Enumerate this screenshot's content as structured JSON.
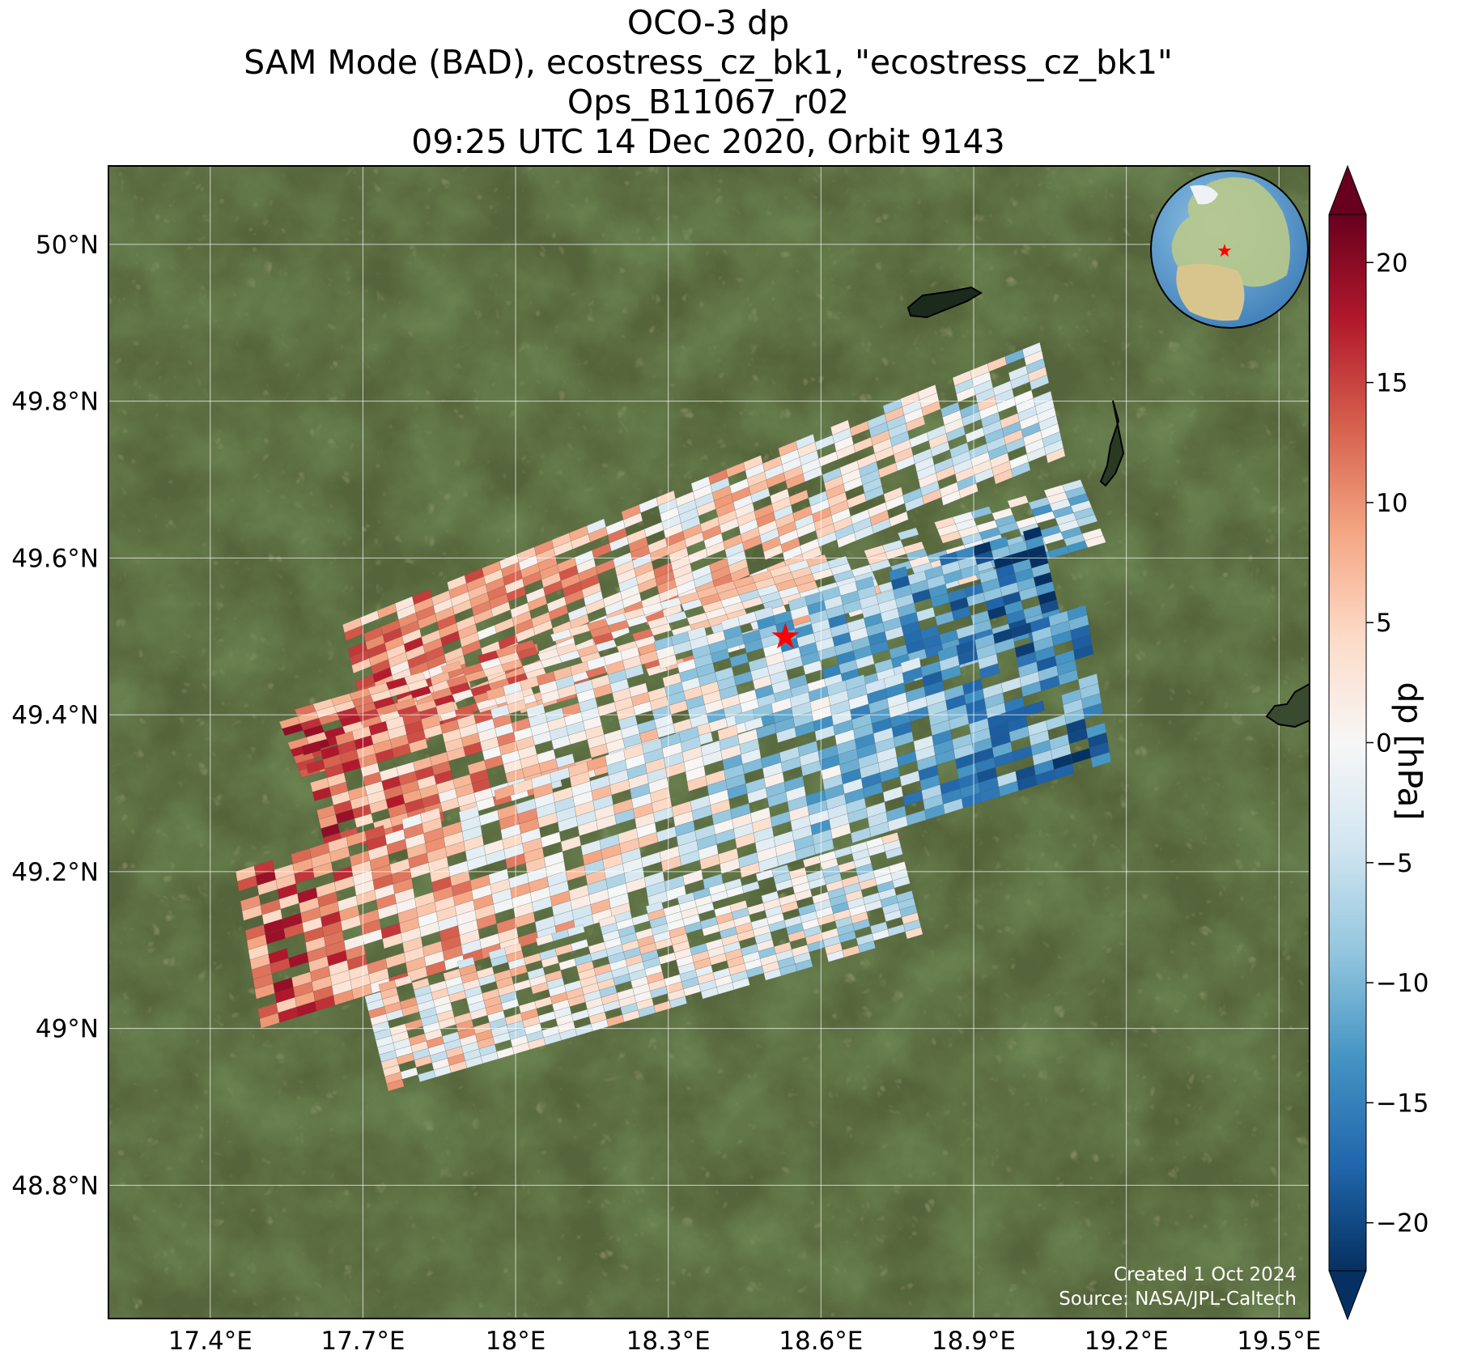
{
  "title": {
    "line1": "OCO-3 dp",
    "line2": "SAM Mode (BAD), ecostress_cz_bk1, \"ecostress_cz_bk1\"",
    "line3": "Ops_B11067_r02",
    "line4": "09:25 UTC 14 Dec 2020, Orbit 9143"
  },
  "map": {
    "lon_range": [
      17.2,
      19.56
    ],
    "lat_range": [
      48.63,
      50.1
    ],
    "lon_ticks": [
      17.4,
      17.7,
      18.0,
      18.3,
      18.6,
      18.9,
      19.2,
      19.5
    ],
    "lon_tick_labels": [
      "17.4°E",
      "17.7°E",
      "18°E",
      "18.3°E",
      "18.6°E",
      "18.9°E",
      "19.2°E",
      "19.5°E"
    ],
    "lat_ticks": [
      48.8,
      49.0,
      49.2,
      49.4,
      49.6,
      49.8,
      50.0
    ],
    "lat_tick_labels": [
      "48.8°N",
      "49°N",
      "49.2°N",
      "49.4°N",
      "49.6°N",
      "49.8°N",
      "50°N"
    ],
    "gridlines": true,
    "target_marker": {
      "lon": 18.53,
      "lat": 49.5,
      "symbol": "star",
      "color": "#ff0000"
    },
    "basemap": "satellite imagery",
    "inset": "orthographic globe with target star over Europe",
    "credits": {
      "created": "Created 1 Oct 2024",
      "source": "Source: NASA/JPL-Caltech"
    }
  },
  "colorbar": {
    "label": "dp [hPa]",
    "colormap": "RdBu_r",
    "vmin": -22,
    "vmax": 22,
    "extend": "both",
    "ticks": [
      -20,
      -15,
      -10,
      -5,
      0,
      5,
      10,
      15,
      20
    ],
    "tick_labels": [
      "−20",
      "−15",
      "−10",
      "−5",
      "0",
      "5",
      "10",
      "15",
      "20"
    ]
  },
  "swaths": [
    {
      "lon0": 17.71,
      "lat0": 49.37,
      "lon1": 19.08,
      "lat1": 49.73,
      "n_along": 40,
      "n_across": 14,
      "width_lat": 0.145,
      "trend": 0.7
    },
    {
      "lon0": 17.58,
      "lat0": 49.32,
      "lon1": 19.16,
      "lat1": 49.62,
      "n_along": 44,
      "n_across": 9,
      "width_lat": 0.08,
      "trend": 0.9
    },
    {
      "lon0": 17.63,
      "lat0": 49.22,
      "lon1": 19.08,
      "lat1": 49.5,
      "n_along": 44,
      "n_across": 12,
      "width_lat": 0.14,
      "trend": 1.5
    },
    {
      "lon0": 17.5,
      "lat0": 49.0,
      "lon1": 19.17,
      "lat1": 49.34,
      "n_along": 46,
      "n_across": 16,
      "width_lat": 0.2,
      "trend": 1.2
    },
    {
      "lon0": 17.75,
      "lat0": 48.92,
      "lon1": 18.8,
      "lat1": 49.12,
      "n_along": 34,
      "n_across": 14,
      "width_lat": 0.13,
      "trend": 0.4
    }
  ]
}
